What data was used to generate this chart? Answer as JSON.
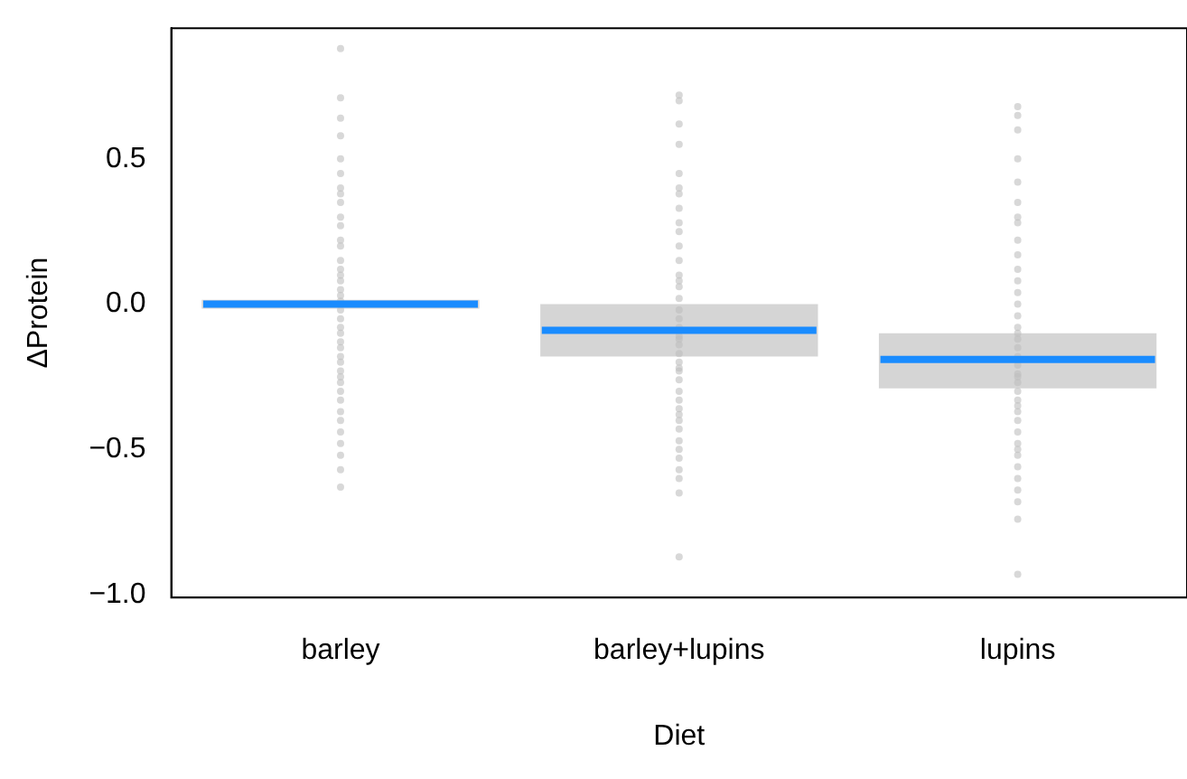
{
  "chart_data": {
    "type": "scatter",
    "xlabel": "Diet",
    "ylabel": "ΔProtein",
    "categories": [
      "barley",
      "barley+lupins",
      "lupins"
    ],
    "ylim": [
      -1.01,
      0.95
    ],
    "yticks": [
      {
        "value": -1,
        "label": "−1.0"
      },
      {
        "value": -0.5,
        "label": "−0.5"
      },
      {
        "value": 0,
        "label": "0.0"
      },
      0.5
    ],
    "grid": false,
    "legend": false,
    "series": [
      {
        "color": "#bebebe",
        "marker": "circle",
        "x": [
          "barley",
          "barley",
          "barley",
          "barley",
          "barley",
          "barley",
          "barley",
          "barley",
          "barley",
          "barley",
          "barley",
          "barley",
          "barley",
          "barley",
          "barley",
          "barley",
          "barley",
          "barley",
          "barley",
          "barley",
          "barley",
          "barley",
          "barley",
          "barley",
          "barley",
          "barley",
          "barley",
          "barley",
          "barley",
          "barley",
          "barley",
          "barley",
          "barley",
          "barley",
          "barley",
          "barley",
          "barley",
          "barley",
          "barley",
          "barley",
          "barley+lupins",
          "barley+lupins",
          "barley+lupins",
          "barley+lupins",
          "barley+lupins",
          "barley+lupins",
          "barley+lupins",
          "barley+lupins",
          "barley+lupins",
          "barley+lupins",
          "barley+lupins",
          "barley+lupins",
          "barley+lupins",
          "barley+lupins",
          "barley+lupins",
          "barley+lupins",
          "barley+lupins",
          "barley+lupins",
          "barley+lupins",
          "barley+lupins",
          "barley+lupins",
          "barley+lupins",
          "barley+lupins",
          "barley+lupins",
          "barley+lupins",
          "barley+lupins",
          "barley+lupins",
          "barley+lupins",
          "barley+lupins",
          "barley+lupins",
          "barley+lupins",
          "barley+lupins",
          "barley+lupins",
          "barley+lupins",
          "barley+lupins",
          "barley+lupins",
          "barley+lupins",
          "barley+lupins",
          "barley+lupins",
          "barley+lupins",
          "lupins",
          "lupins",
          "lupins",
          "lupins",
          "lupins",
          "lupins",
          "lupins",
          "lupins",
          "lupins",
          "lupins",
          "lupins",
          "lupins",
          "lupins",
          "lupins",
          "lupins",
          "lupins",
          "lupins",
          "lupins",
          "lupins",
          "lupins",
          "lupins",
          "lupins",
          "lupins",
          "lupins",
          "lupins",
          "lupins",
          "lupins",
          "lupins",
          "lupins",
          "lupins",
          "lupins",
          "lupins",
          "lupins",
          "lupins",
          "lupins",
          "lupins",
          "lupins",
          "lupins",
          "lupins"
        ],
        "values": [
          0.88,
          0.71,
          0.64,
          0.58,
          0.5,
          0.45,
          0.4,
          0.35,
          0.3,
          0.27,
          0.22,
          0.2,
          0.15,
          0.12,
          0.1,
          0.08,
          0.05,
          0.03,
          0.01,
          -0.02,
          -0.05,
          -0.08,
          -0.1,
          -0.13,
          -0.15,
          -0.18,
          -0.2,
          -0.23,
          -0.27,
          -0.3,
          -0.33,
          -0.37,
          -0.4,
          -0.44,
          -0.48,
          -0.52,
          -0.57,
          -0.63,
          0.38,
          -0.25,
          0.72,
          0.7,
          0.62,
          0.55,
          0.45,
          0.38,
          0.33,
          0.28,
          0.25,
          0.2,
          0.15,
          0.1,
          0.06,
          0.02,
          -0.02,
          -0.05,
          -0.08,
          -0.11,
          -0.14,
          -0.17,
          -0.2,
          -0.23,
          -0.26,
          -0.3,
          -0.33,
          -0.36,
          -0.4,
          -0.43,
          -0.47,
          -0.5,
          -0.53,
          -0.57,
          -0.6,
          -0.65,
          -0.87,
          0.4,
          -0.12,
          -0.22,
          0.08,
          -0.38,
          0.68,
          0.65,
          0.6,
          0.5,
          0.42,
          0.35,
          0.28,
          0.22,
          0.17,
          0.12,
          0.08,
          0.04,
          0.0,
          -0.04,
          -0.08,
          -0.12,
          -0.15,
          -0.18,
          -0.21,
          -0.24,
          -0.27,
          -0.3,
          -0.33,
          -0.37,
          -0.4,
          -0.44,
          -0.48,
          -0.52,
          -0.56,
          -0.6,
          -0.64,
          -0.68,
          -0.74,
          -0.93,
          -0.25,
          0.3,
          -0.1,
          -0.35,
          -0.5
        ]
      },
      {
        "type": "box",
        "color": "#969696",
        "boxes": [
          {
            "low": -0.015,
            "q1": -0.015,
            "median": 0,
            "q3": 0.015,
            "high": 0.015
          },
          {
            "low": -0.18,
            "q1": -0.18,
            "median": -0.09,
            "q3": 0,
            "high": 0
          },
          {
            "low": -0.29,
            "q1": -0.29,
            "median": -0.19,
            "q3": -0.1,
            "high": -0.1
          }
        ]
      }
    ]
  }
}
